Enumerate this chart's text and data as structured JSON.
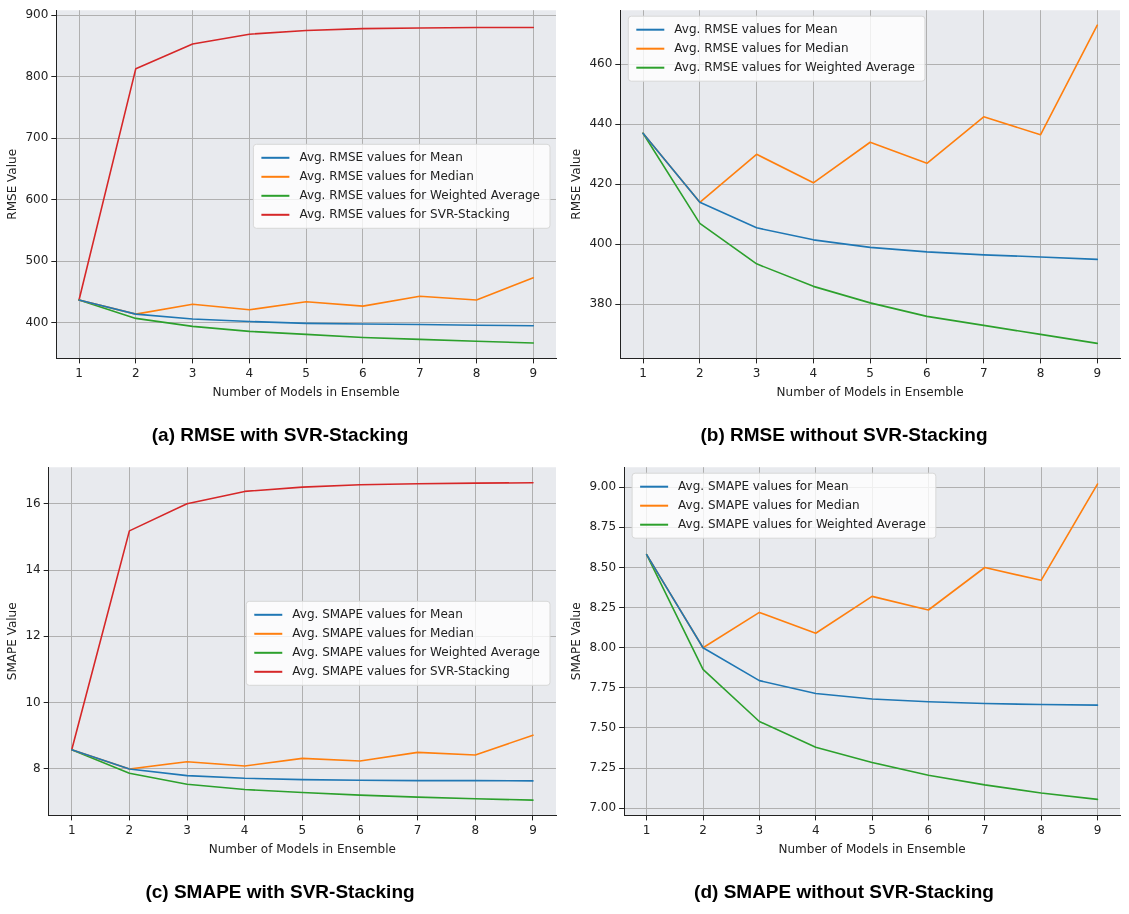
{
  "chart_data": [
    {
      "type": "line",
      "title": "(a) RMSE with SVR-Stacking",
      "xlabel": "Number of Models in Ensemble",
      "ylabel": "RMSE Value",
      "x": [
        1,
        2,
        3,
        4,
        5,
        6,
        7,
        8,
        9
      ],
      "xlim": [
        0.6,
        9.4
      ],
      "xticks": [
        1,
        2,
        3,
        4,
        5,
        6,
        7,
        8,
        9
      ],
      "ylim": [
        342,
        908
      ],
      "yticks": [
        400,
        500,
        600,
        700,
        800,
        900
      ],
      "grid": true,
      "legend": "center right",
      "marker": "none",
      "line_style": "solid",
      "series": [
        {
          "name": "Avg. RMSE values for Mean",
          "color": "#1f77b4",
          "values": [
            437,
            414,
            406,
            402,
            399,
            398,
            397,
            396,
            395
          ]
        },
        {
          "name": "Avg. RMSE values for Median",
          "color": "#ff7f0e",
          "values": [
            437,
            414,
            430,
            421,
            434,
            427,
            443,
            437,
            473
          ]
        },
        {
          "name": "Avg. RMSE values for Weighted Average",
          "color": "#2ca02c",
          "values": [
            437,
            407,
            394,
            386,
            381,
            376,
            373,
            370,
            367
          ]
        },
        {
          "name": "Avg. RMSE values for SVR-Stacking",
          "color": "#d62728",
          "values": [
            437,
            813,
            853,
            869,
            875,
            878,
            879,
            880,
            880
          ]
        }
      ]
    },
    {
      "type": "line",
      "title": "(b) RMSE without SVR-Stacking",
      "xlabel": "Number of Models in Ensemble",
      "ylabel": "RMSE Value",
      "x": [
        1,
        2,
        3,
        4,
        5,
        6,
        7,
        8,
        9
      ],
      "xlim": [
        0.6,
        9.4
      ],
      "xticks": [
        1,
        2,
        3,
        4,
        5,
        6,
        7,
        8,
        9
      ],
      "ylim": [
        362,
        478
      ],
      "yticks": [
        380,
        400,
        420,
        440,
        460
      ],
      "grid": true,
      "legend": "top left",
      "marker": "none",
      "line_style": "solid",
      "series": [
        {
          "name": "Avg. RMSE values for Mean",
          "color": "#1f77b4",
          "values": [
            437,
            414,
            405.5,
            401.5,
            399,
            397.5,
            396.5,
            395.8,
            395
          ]
        },
        {
          "name": "Avg. RMSE values for Median",
          "color": "#ff7f0e",
          "values": [
            437,
            414,
            430,
            420.5,
            434,
            427,
            442.5,
            436.5,
            473
          ]
        },
        {
          "name": "Avg. RMSE values for Weighted Average",
          "color": "#2ca02c",
          "values": [
            437,
            407,
            393.5,
            386,
            380.5,
            376,
            373,
            370,
            367
          ]
        }
      ]
    },
    {
      "type": "line",
      "title": "(c) SMAPE with SVR-Stacking",
      "xlabel": "Number of Models in Ensemble",
      "ylabel": "SMAPE Value",
      "x": [
        1,
        2,
        3,
        4,
        5,
        6,
        7,
        8,
        9
      ],
      "xlim": [
        0.6,
        9.4
      ],
      "xticks": [
        1,
        2,
        3,
        4,
        5,
        6,
        7,
        8,
        9
      ],
      "ylim": [
        6.6,
        17.1
      ],
      "yticks": [
        8,
        10,
        12,
        14,
        16
      ],
      "grid": true,
      "legend": "center right",
      "marker": "none",
      "line_style": "solid",
      "series": [
        {
          "name": "Avg. SMAPE values for Mean",
          "color": "#1f77b4",
          "values": [
            8.58,
            8.0,
            7.8,
            7.72,
            7.68,
            7.66,
            7.65,
            7.65,
            7.64
          ]
        },
        {
          "name": "Avg. SMAPE values for Median",
          "color": "#ff7f0e",
          "values": [
            8.58,
            8.0,
            8.22,
            8.09,
            8.32,
            8.24,
            8.5,
            8.42,
            9.02
          ]
        },
        {
          "name": "Avg. SMAPE values for Weighted Average",
          "color": "#2ca02c",
          "values": [
            8.58,
            7.87,
            7.54,
            7.38,
            7.29,
            7.21,
            7.15,
            7.1,
            7.06
          ]
        },
        {
          "name": "Avg. SMAPE values for SVR-Stacking",
          "color": "#d62728",
          "values": [
            8.58,
            15.18,
            16.0,
            16.37,
            16.5,
            16.57,
            16.6,
            16.62,
            16.63
          ]
        }
      ]
    },
    {
      "type": "line",
      "title": "(d) SMAPE without SVR-Stacking",
      "xlabel": "Number of Models in Ensemble",
      "ylabel": "SMAPE Value",
      "x": [
        1,
        2,
        3,
        4,
        5,
        6,
        7,
        8,
        9
      ],
      "xlim": [
        0.6,
        9.4
      ],
      "xticks": [
        1,
        2,
        3,
        4,
        5,
        6,
        7,
        8,
        9
      ],
      "ylim": [
        6.955,
        9.125
      ],
      "yticks": [
        {
          "value": 7,
          "label": "7.00"
        },
        {
          "value": 7.25,
          "label": "7.25"
        },
        {
          "value": 7.5,
          "label": "7.50"
        },
        {
          "value": 7.75,
          "label": "7.75"
        },
        {
          "value": 8,
          "label": "8.00"
        },
        {
          "value": 8.25,
          "label": "8.25"
        },
        {
          "value": 8.5,
          "label": "8.50"
        },
        {
          "value": 8.75,
          "label": "8.75"
        },
        {
          "value": 9,
          "label": "9.00"
        }
      ],
      "grid": true,
      "legend": "top left",
      "marker": "none",
      "line_style": "solid",
      "series": [
        {
          "name": "Avg. SMAPE values for Mean",
          "color": "#1f77b4",
          "values": [
            8.58,
            8.0,
            7.795,
            7.715,
            7.68,
            7.663,
            7.652,
            7.646,
            7.642
          ]
        },
        {
          "name": "Avg. SMAPE values for Median",
          "color": "#ff7f0e",
          "values": [
            8.58,
            8.0,
            8.22,
            8.09,
            8.32,
            8.235,
            8.5,
            8.42,
            9.02
          ]
        },
        {
          "name": "Avg. SMAPE values for Weighted Average",
          "color": "#2ca02c",
          "values": [
            8.58,
            7.865,
            7.54,
            7.38,
            7.285,
            7.205,
            7.145,
            7.095,
            7.055
          ]
        }
      ]
    }
  ]
}
